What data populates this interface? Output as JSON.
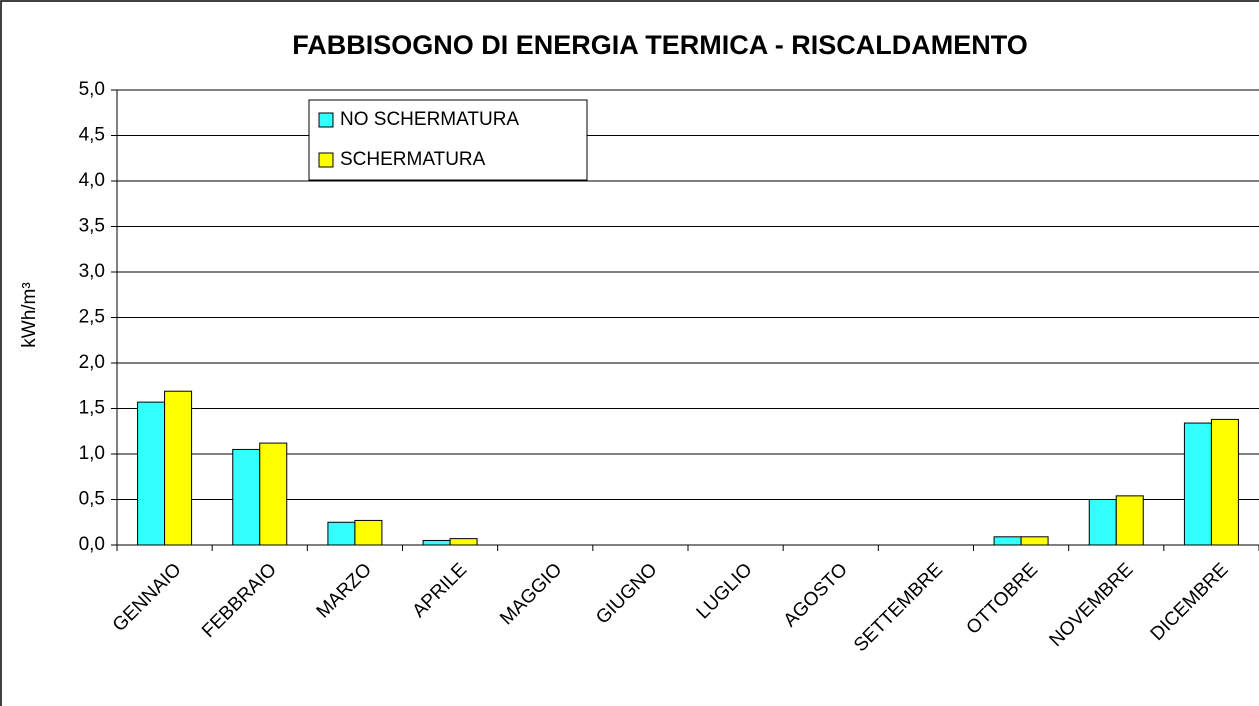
{
  "chart_data": {
    "type": "bar",
    "title": "FABBISOGNO DI ENERGIA TERMICA - RISCALDAMENTO",
    "y_label": "kWh/m³",
    "categories": [
      "GENNAIO",
      "FEBBRAIO",
      "MARZO",
      "APRILE",
      "MAGGIO",
      "GIUGNO",
      "LUGLIO",
      "AGOSTO",
      "SETTEMBRE",
      "OTTOBRE",
      "NOVEMBRE",
      "DICEMBRE"
    ],
    "series": [
      {
        "name": "NO SCHERMATURA",
        "color": "#33ffff",
        "values": [
          1.57,
          1.05,
          0.25,
          0.05,
          0,
          0,
          0,
          0,
          0,
          0.09,
          0.5,
          1.34
        ]
      },
      {
        "name": "SCHERMATURA",
        "color": "#ffff00",
        "values": [
          1.69,
          1.12,
          0.27,
          0.07,
          0,
          0,
          0,
          0,
          0,
          0.09,
          0.54,
          1.38
        ]
      }
    ],
    "ylim": [
      0,
      5
    ],
    "yticks": [
      {
        "value": 0,
        "label": "0,0"
      },
      {
        "value": 0.5,
        "label": "0,5"
      },
      {
        "value": 1,
        "label": "1,0"
      },
      {
        "value": 1.5,
        "label": "1,5"
      },
      {
        "value": 2,
        "label": "2,0"
      },
      {
        "value": 2.5,
        "label": "2,5"
      },
      {
        "value": 3,
        "label": "3,0"
      },
      {
        "value": 3.5,
        "label": "3,5"
      },
      {
        "value": 4,
        "label": "4,0"
      },
      {
        "value": 4.5,
        "label": "4,5"
      },
      {
        "value": 5,
        "label": "5,0"
      }
    ],
    "grid": true,
    "legend": "top-left"
  }
}
